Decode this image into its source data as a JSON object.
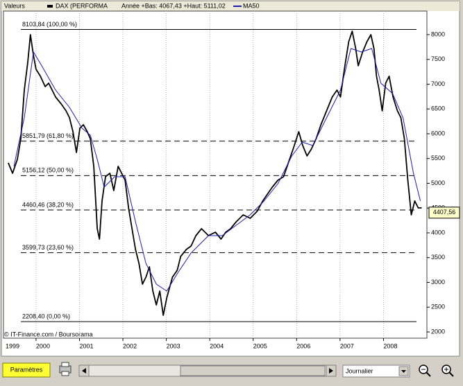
{
  "header": {
    "left_label": "Valeurs",
    "info": "Année +Bas: 4067,43 +Haut: 5111,02"
  },
  "chart_data": {
    "type": "line",
    "xlim": [
      1999.25,
      2009.0
    ],
    "xticks": [
      1999,
      2000,
      2001,
      2002,
      2003,
      2004,
      2005,
      2006,
      2007,
      2008
    ],
    "ylim": [
      1874,
      8475
    ],
    "yticks": [
      2000,
      2500,
      3000,
      3500,
      4000,
      4500,
      5000,
      5500,
      6000,
      6500,
      7000,
      7500,
      8000
    ],
    "xgrid": true,
    "series": [
      {
        "name": "DAX (PERFORMA",
        "color": "#000000",
        "x": [
          1999.36,
          1999.46,
          1999.57,
          1999.65,
          1999.73,
          1999.81,
          1999.87,
          1999.94,
          2000.0,
          2000.1,
          2000.21,
          2000.29,
          2000.37,
          2000.45,
          2000.58,
          2000.69,
          2000.77,
          2000.85,
          2000.93,
          2001.01,
          2001.09,
          2001.18,
          2001.25,
          2001.33,
          2001.41,
          2001.46,
          2001.52,
          2001.6,
          2001.7,
          2001.79,
          2001.89,
          2001.97,
          2002.05,
          2002.13,
          2002.21,
          2002.29,
          2002.37,
          2002.45,
          2002.53,
          2002.61,
          2002.69,
          2002.77,
          2002.85,
          2002.93,
          2003.01,
          2003.14,
          2003.25,
          2003.33,
          2003.46,
          2003.57,
          2003.68,
          2003.81,
          2003.97,
          2004.13,
          2004.26,
          2004.37,
          2004.48,
          2004.61,
          2004.77,
          2004.93,
          2005.09,
          2005.22,
          2005.33,
          2005.44,
          2005.57,
          2005.7,
          2005.81,
          2005.92,
          2006.05,
          2006.14,
          2006.24,
          2006.34,
          2006.45,
          2006.56,
          2006.69,
          2006.82,
          2006.93,
          2007.01,
          2007.1,
          2007.2,
          2007.28,
          2007.36,
          2007.42,
          2007.52,
          2007.62,
          2007.71,
          2007.78,
          2007.84,
          2007.9,
          2007.97,
          2008.05,
          2008.13,
          2008.22,
          2008.32,
          2008.4,
          2008.48,
          2008.56,
          2008.64,
          2008.72,
          2008.8,
          2008.88
        ],
        "values": [
          5413,
          5203,
          5483,
          5902,
          6881,
          7441,
          8000,
          7580,
          7301,
          7161,
          6951,
          7021,
          6881,
          6741,
          6601,
          6462,
          6322,
          6042,
          5622,
          6112,
          6182,
          6042,
          5902,
          5343,
          4084,
          3874,
          4643,
          5133,
          5203,
          4853,
          5343,
          5203,
          5063,
          4503,
          4084,
          3664,
          3385,
          2965,
          3105,
          3315,
          2825,
          2545,
          2825,
          2336,
          2685,
          3105,
          3245,
          3524,
          3664,
          3734,
          3944,
          4084,
          3944,
          4014,
          3874,
          4014,
          4084,
          4224,
          4364,
          4294,
          4434,
          4643,
          4783,
          4923,
          5063,
          5133,
          5413,
          5692,
          6042,
          5762,
          5552,
          5692,
          5902,
          6182,
          6462,
          6741,
          6881,
          6741,
          7301,
          7860,
          8070,
          7720,
          7371,
          7650,
          7860,
          8000,
          7720,
          7161,
          6881,
          6462,
          7021,
          7161,
          6741,
          6462,
          6322,
          5902,
          5063,
          4364,
          4643,
          4503,
          4503
        ]
      },
      {
        "name": "MA50",
        "color": "#1c1ca8",
        "x": [
          1999.49,
          1999.73,
          1999.94,
          2000.13,
          2000.45,
          2000.77,
          2001.06,
          2001.25,
          2001.41,
          2001.57,
          2001.81,
          2002.05,
          2002.29,
          2002.53,
          2002.77,
          2003.01,
          2003.25,
          2003.57,
          2003.97,
          2004.29,
          2004.61,
          2004.93,
          2005.25,
          2005.57,
          2005.89,
          2006.13,
          2006.37,
          2006.69,
          2007.01,
          2007.25,
          2007.49,
          2007.73,
          2007.94,
          2008.21,
          2008.45,
          2008.69,
          2008.85
        ],
        "values": [
          5343,
          6322,
          7650,
          7371,
          6881,
          6531,
          6112,
          5972,
          5483,
          4923,
          5133,
          5133,
          4224,
          3385,
          2965,
          2825,
          3175,
          3594,
          3944,
          3944,
          4154,
          4364,
          4643,
          4993,
          5552,
          5832,
          5762,
          6322,
          6881,
          7720,
          7650,
          7720,
          7021,
          6811,
          6322,
          5203,
          4643
        ]
      }
    ],
    "levels": [
      {
        "value": 8103.84,
        "label": "8103,84 (100,00 %)",
        "dashed": false
      },
      {
        "value": 5851.79,
        "label": "5851,79 (61,80 %)",
        "dashed": true
      },
      {
        "value": 5156.12,
        "label": "5156,12 (50,00 %)",
        "dashed": true
      },
      {
        "value": 4460.46,
        "label": "4460,46 (38,20 %)",
        "dashed": true
      },
      {
        "value": 3599.73,
        "label": "3599,73 (23,60 %)",
        "dashed": true
      },
      {
        "value": 2208.4,
        "label": "2208,40 (0,00 %)",
        "dashed": false
      }
    ],
    "last_value": {
      "value": 4407.56,
      "label": "4407,56"
    },
    "source": "© IT-Finance.com / Boursorama"
  },
  "toolbar": {
    "button": "Paramètres",
    "period": "Journalier"
  }
}
